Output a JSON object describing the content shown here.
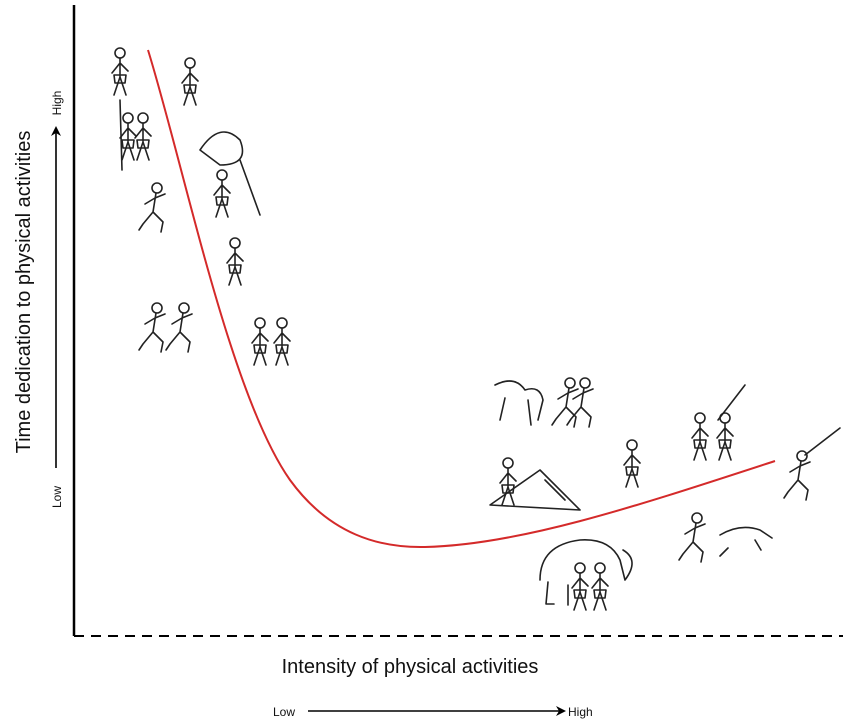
{
  "y_axis": {
    "label": "Time dedication to physical activities",
    "low": "Low",
    "high": "High"
  },
  "x_axis": {
    "label": "Intensity of physical activities",
    "low": "Low",
    "high": "High"
  }
}
